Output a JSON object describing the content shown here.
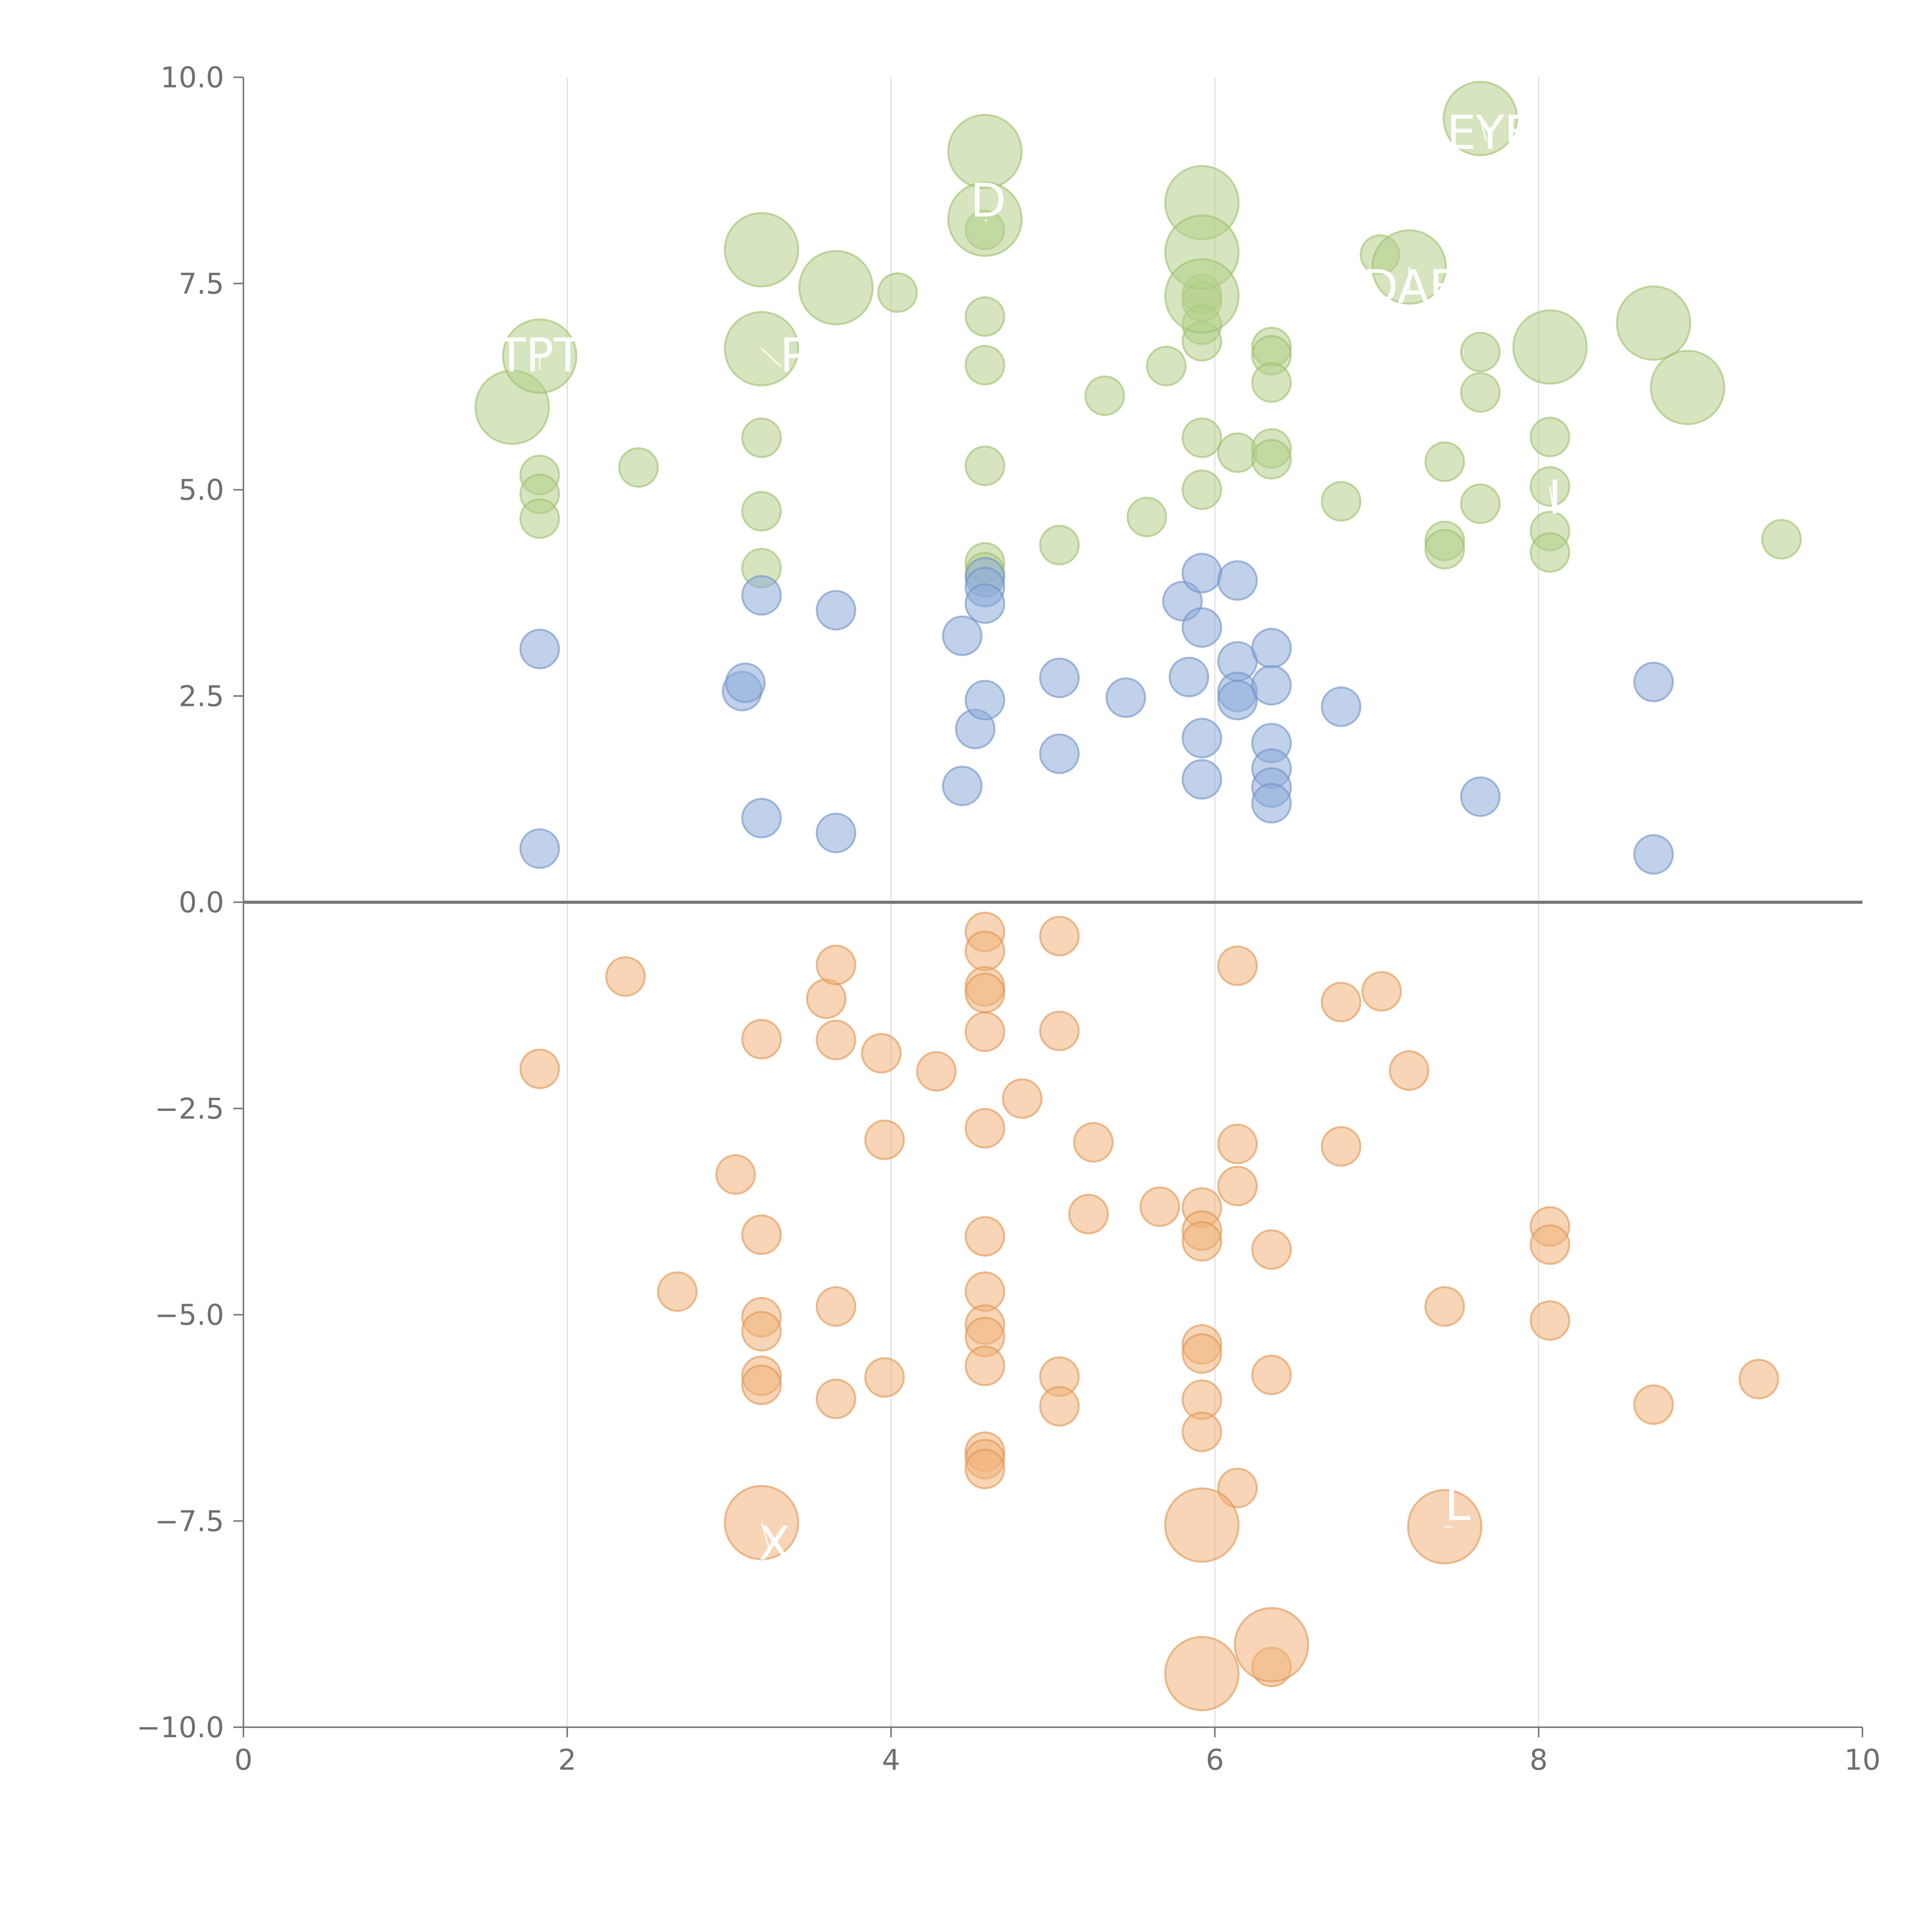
{
  "chart_data": {
    "type": "scatter",
    "title": "",
    "xlabel": "",
    "ylabel": "",
    "xlim": [
      0,
      10
    ],
    "ylim": [
      -10,
      10
    ],
    "grid": "vertical",
    "x_ticks": [
      "0",
      "2",
      "4",
      "6",
      "8",
      "10"
    ],
    "y_ticks": [
      "10.0",
      "7.5",
      "5.0",
      "2.5",
      "0.0",
      "−2.5",
      "−5.0",
      "−7.5",
      "−10.0"
    ],
    "colors": {
      "green": "#b5cf8a",
      "blue": "#8eacd8",
      "orange": "#f0b27a",
      "green_stroke": "#9dbf6c",
      "blue_stroke": "#6f91c6",
      "orange_stroke": "#df9552"
    },
    "series": [
      {
        "name": "green",
        "color": "green",
        "points": [
          {
            "x": 1.83,
            "y": 5.18,
            "s": 1
          },
          {
            "x": 1.83,
            "y": 4.95,
            "s": 1
          },
          {
            "x": 1.83,
            "y": 4.65,
            "s": 1
          },
          {
            "x": 2.44,
            "y": 5.27,
            "s": 1
          },
          {
            "x": 3.2,
            "y": 5.63,
            "s": 1
          },
          {
            "x": 3.2,
            "y": 4.74,
            "s": 1
          },
          {
            "x": 3.2,
            "y": 4.05,
            "s": 1
          },
          {
            "x": 4.04,
            "y": 7.39,
            "s": 1
          },
          {
            "x": 4.58,
            "y": 7.1,
            "s": 1
          },
          {
            "x": 4.58,
            "y": 6.51,
            "s": 1
          },
          {
            "x": 4.58,
            "y": 5.29,
            "s": 1
          },
          {
            "x": 4.58,
            "y": 4.12,
            "s": 1
          },
          {
            "x": 4.58,
            "y": 4.0,
            "s": 1
          },
          {
            "x": 4.58,
            "y": 8.15,
            "s": 1
          },
          {
            "x": 5.04,
            "y": 4.33,
            "s": 1
          },
          {
            "x": 5.32,
            "y": 6.14,
            "s": 1
          },
          {
            "x": 5.58,
            "y": 4.67,
            "s": 1
          },
          {
            "x": 5.7,
            "y": 6.5,
            "s": 1
          },
          {
            "x": 5.92,
            "y": 7.37,
            "s": 1
          },
          {
            "x": 5.92,
            "y": 7.28,
            "s": 1
          },
          {
            "x": 5.92,
            "y": 7.0,
            "s": 1
          },
          {
            "x": 5.92,
            "y": 6.8,
            "s": 1
          },
          {
            "x": 5.92,
            "y": 5.63,
            "s": 1
          },
          {
            "x": 5.92,
            "y": 5.0,
            "s": 1
          },
          {
            "x": 6.14,
            "y": 5.45,
            "s": 1
          },
          {
            "x": 6.35,
            "y": 6.73,
            "s": 1
          },
          {
            "x": 6.35,
            "y": 6.63,
            "s": 1
          },
          {
            "x": 6.35,
            "y": 6.3,
            "s": 1
          },
          {
            "x": 6.35,
            "y": 5.5,
            "s": 1
          },
          {
            "x": 6.35,
            "y": 5.37,
            "s": 1
          },
          {
            "x": 6.78,
            "y": 4.86,
            "s": 1
          },
          {
            "x": 7.02,
            "y": 7.85,
            "s": 1
          },
          {
            "x": 7.42,
            "y": 5.34,
            "s": 1
          },
          {
            "x": 7.42,
            "y": 4.38,
            "s": 1
          },
          {
            "x": 7.42,
            "y": 4.28,
            "s": 1
          },
          {
            "x": 7.64,
            "y": 6.67,
            "s": 1
          },
          {
            "x": 7.64,
            "y": 6.18,
            "s": 1
          },
          {
            "x": 7.64,
            "y": 4.83,
            "s": 1
          },
          {
            "x": 8.07,
            "y": 5.64,
            "s": 1
          },
          {
            "x": 8.07,
            "y": 5.04,
            "s": 1
          },
          {
            "x": 8.07,
            "y": 4.5,
            "s": 1
          },
          {
            "x": 8.07,
            "y": 4.24,
            "s": 1
          },
          {
            "x": 9.5,
            "y": 4.4,
            "s": 1
          },
          {
            "x": 1.66,
            "y": 6.0,
            "s": 2
          },
          {
            "x": 1.83,
            "y": 6.62,
            "s": 2
          },
          {
            "x": 3.2,
            "y": 7.91,
            "s": 2
          },
          {
            "x": 3.2,
            "y": 6.71,
            "s": 2
          },
          {
            "x": 3.66,
            "y": 7.45,
            "s": 2
          },
          {
            "x": 4.58,
            "y": 9.1,
            "s": 2
          },
          {
            "x": 4.58,
            "y": 8.28,
            "s": 2
          },
          {
            "x": 5.92,
            "y": 8.48,
            "s": 2
          },
          {
            "x": 5.92,
            "y": 7.88,
            "s": 2
          },
          {
            "x": 5.92,
            "y": 7.35,
            "s": 2
          },
          {
            "x": 7.2,
            "y": 7.7,
            "s": 2
          },
          {
            "x": 7.64,
            "y": 9.5,
            "s": 2
          },
          {
            "x": 8.07,
            "y": 6.73,
            "s": 2
          },
          {
            "x": 8.71,
            "y": 7.02,
            "s": 2
          },
          {
            "x": 8.92,
            "y": 6.24,
            "s": 2
          }
        ]
      },
      {
        "name": "blue",
        "color": "blue",
        "points": [
          {
            "x": 1.83,
            "y": 3.07,
            "s": 1
          },
          {
            "x": 1.83,
            "y": 0.65,
            "s": 1
          },
          {
            "x": 3.08,
            "y": 2.56,
            "s": 1
          },
          {
            "x": 3.1,
            "y": 2.66,
            "s": 1
          },
          {
            "x": 3.2,
            "y": 3.72,
            "s": 1
          },
          {
            "x": 3.2,
            "y": 1.02,
            "s": 1
          },
          {
            "x": 3.66,
            "y": 3.54,
            "s": 1
          },
          {
            "x": 3.66,
            "y": 0.84,
            "s": 1
          },
          {
            "x": 4.44,
            "y": 3.23,
            "s": 1
          },
          {
            "x": 4.44,
            "y": 1.41,
            "s": 1
          },
          {
            "x": 4.52,
            "y": 2.1,
            "s": 1
          },
          {
            "x": 4.58,
            "y": 3.94,
            "s": 1
          },
          {
            "x": 4.58,
            "y": 3.82,
            "s": 1
          },
          {
            "x": 4.58,
            "y": 3.62,
            "s": 1
          },
          {
            "x": 4.58,
            "y": 2.45,
            "s": 1
          },
          {
            "x": 5.04,
            "y": 2.72,
            "s": 1
          },
          {
            "x": 5.04,
            "y": 1.8,
            "s": 1
          },
          {
            "x": 5.45,
            "y": 2.48,
            "s": 1
          },
          {
            "x": 5.8,
            "y": 3.65,
            "s": 1
          },
          {
            "x": 5.84,
            "y": 2.73,
            "s": 1
          },
          {
            "x": 5.92,
            "y": 3.99,
            "s": 1
          },
          {
            "x": 5.92,
            "y": 3.33,
            "s": 1
          },
          {
            "x": 5.92,
            "y": 1.99,
            "s": 1
          },
          {
            "x": 5.92,
            "y": 1.49,
            "s": 1
          },
          {
            "x": 6.14,
            "y": 3.9,
            "s": 1
          },
          {
            "x": 6.14,
            "y": 2.92,
            "s": 1
          },
          {
            "x": 6.14,
            "y": 2.55,
            "s": 1
          },
          {
            "x": 6.14,
            "y": 2.45,
            "s": 1
          },
          {
            "x": 6.35,
            "y": 3.08,
            "s": 1
          },
          {
            "x": 6.35,
            "y": 2.63,
            "s": 1
          },
          {
            "x": 6.35,
            "y": 1.93,
            "s": 1
          },
          {
            "x": 6.35,
            "y": 1.62,
            "s": 1
          },
          {
            "x": 6.35,
            "y": 1.39,
            "s": 1
          },
          {
            "x": 6.35,
            "y": 1.2,
            "s": 1
          },
          {
            "x": 6.78,
            "y": 2.37,
            "s": 1
          },
          {
            "x": 7.64,
            "y": 1.28,
            "s": 1
          },
          {
            "x": 8.71,
            "y": 2.67,
            "s": 1
          },
          {
            "x": 8.71,
            "y": 0.58,
            "s": 1
          }
        ]
      },
      {
        "name": "orange",
        "color": "orange",
        "points": [
          {
            "x": 1.83,
            "y": -2.02,
            "s": 1
          },
          {
            "x": 2.36,
            "y": -0.9,
            "s": 1
          },
          {
            "x": 2.68,
            "y": -4.72,
            "s": 1
          },
          {
            "x": 3.04,
            "y": -3.3,
            "s": 1
          },
          {
            "x": 3.2,
            "y": -1.66,
            "s": 1
          },
          {
            "x": 3.2,
            "y": -4.03,
            "s": 1
          },
          {
            "x": 3.2,
            "y": -5.03,
            "s": 1
          },
          {
            "x": 3.2,
            "y": -5.2,
            "s": 1
          },
          {
            "x": 3.2,
            "y": -5.74,
            "s": 1
          },
          {
            "x": 3.2,
            "y": -5.85,
            "s": 1
          },
          {
            "x": 3.6,
            "y": -1.17,
            "s": 1
          },
          {
            "x": 3.66,
            "y": -0.76,
            "s": 1
          },
          {
            "x": 3.66,
            "y": -1.67,
            "s": 1
          },
          {
            "x": 3.66,
            "y": -4.9,
            "s": 1
          },
          {
            "x": 3.66,
            "y": -6.02,
            "s": 1
          },
          {
            "x": 3.94,
            "y": -1.83,
            "s": 1
          },
          {
            "x": 3.96,
            "y": -2.88,
            "s": 1
          },
          {
            "x": 3.96,
            "y": -5.76,
            "s": 1
          },
          {
            "x": 4.28,
            "y": -2.05,
            "s": 1
          },
          {
            "x": 4.58,
            "y": -0.36,
            "s": 1
          },
          {
            "x": 4.58,
            "y": -0.59,
            "s": 1
          },
          {
            "x": 4.58,
            "y": -1.02,
            "s": 1
          },
          {
            "x": 4.58,
            "y": -1.1,
            "s": 1
          },
          {
            "x": 4.58,
            "y": -1.57,
            "s": 1
          },
          {
            "x": 4.58,
            "y": -2.74,
            "s": 1
          },
          {
            "x": 4.58,
            "y": -4.05,
            "s": 1
          },
          {
            "x": 4.58,
            "y": -4.72,
            "s": 1
          },
          {
            "x": 4.58,
            "y": -5.12,
            "s": 1
          },
          {
            "x": 4.58,
            "y": -5.27,
            "s": 1
          },
          {
            "x": 4.58,
            "y": -5.62,
            "s": 1
          },
          {
            "x": 4.58,
            "y": -6.66,
            "s": 1
          },
          {
            "x": 4.58,
            "y": -6.75,
            "s": 1
          },
          {
            "x": 4.58,
            "y": -6.87,
            "s": 1
          },
          {
            "x": 4.81,
            "y": -2.38,
            "s": 1
          },
          {
            "x": 5.04,
            "y": -0.41,
            "s": 1
          },
          {
            "x": 5.04,
            "y": -1.56,
            "s": 1
          },
          {
            "x": 5.04,
            "y": -5.75,
            "s": 1
          },
          {
            "x": 5.04,
            "y": -6.11,
            "s": 1
          },
          {
            "x": 5.22,
            "y": -3.78,
            "s": 1
          },
          {
            "x": 5.25,
            "y": -2.91,
            "s": 1
          },
          {
            "x": 5.66,
            "y": -3.69,
            "s": 1
          },
          {
            "x": 5.92,
            "y": -3.7,
            "s": 1
          },
          {
            "x": 5.92,
            "y": -3.98,
            "s": 1
          },
          {
            "x": 5.92,
            "y": -4.11,
            "s": 1
          },
          {
            "x": 5.92,
            "y": -5.36,
            "s": 1
          },
          {
            "x": 5.92,
            "y": -5.47,
            "s": 1
          },
          {
            "x": 5.92,
            "y": -6.03,
            "s": 1
          },
          {
            "x": 5.92,
            "y": -6.42,
            "s": 1
          },
          {
            "x": 6.14,
            "y": -0.77,
            "s": 1
          },
          {
            "x": 6.14,
            "y": -2.93,
            "s": 1
          },
          {
            "x": 6.14,
            "y": -3.44,
            "s": 1
          },
          {
            "x": 6.14,
            "y": -7.1,
            "s": 1
          },
          {
            "x": 6.35,
            "y": -4.21,
            "s": 1
          },
          {
            "x": 6.35,
            "y": -5.73,
            "s": 1
          },
          {
            "x": 6.35,
            "y": -9.27,
            "s": 1
          },
          {
            "x": 6.78,
            "y": -1.21,
            "s": 1
          },
          {
            "x": 6.78,
            "y": -2.96,
            "s": 1
          },
          {
            "x": 7.03,
            "y": -1.08,
            "s": 1
          },
          {
            "x": 7.2,
            "y": -2.04,
            "s": 1
          },
          {
            "x": 7.42,
            "y": -4.9,
            "s": 1
          },
          {
            "x": 8.07,
            "y": -3.93,
            "s": 1
          },
          {
            "x": 8.07,
            "y": -4.15,
            "s": 1
          },
          {
            "x": 8.07,
            "y": -5.07,
            "s": 1
          },
          {
            "x": 8.71,
            "y": -6.09,
            "s": 1
          },
          {
            "x": 9.36,
            "y": -5.78,
            "s": 1
          },
          {
            "x": 3.2,
            "y": -7.52,
            "s": 2
          },
          {
            "x": 5.92,
            "y": -7.55,
            "s": 2
          },
          {
            "x": 7.42,
            "y": -7.57,
            "s": 2
          },
          {
            "x": 6.35,
            "y": -9.0,
            "s": 2
          },
          {
            "x": 5.92,
            "y": -9.35,
            "s": 2
          }
        ]
      }
    ],
    "annotations": [
      {
        "text": "TPT",
        "x": 1.83,
        "y": 6.62,
        "tx": 1.83,
        "ty": 6.62
      },
      {
        "text": "P",
        "x": 3.2,
        "y": 6.71,
        "tx": 3.4,
        "ty": 6.62
      },
      {
        "text": "D",
        "x": 4.58,
        "y": 8.28,
        "tx": 4.6,
        "ty": 8.5
      },
      {
        "text": "DAF",
        "x": 7.2,
        "y": 7.7,
        "tx": 7.2,
        "ty": 7.45
      },
      {
        "text": "EYE",
        "x": 7.64,
        "y": 9.5,
        "tx": 7.7,
        "ty": 9.32
      },
      {
        "text": "I",
        "x": 8.07,
        "y": 5.04,
        "tx": 8.1,
        "ty": 4.9
      },
      {
        "text": "X",
        "x": 3.2,
        "y": -7.52,
        "tx": 3.28,
        "ty": -7.78
      },
      {
        "text": "L",
        "x": 7.42,
        "y": -7.57,
        "tx": 7.5,
        "ty": -7.3
      }
    ]
  }
}
